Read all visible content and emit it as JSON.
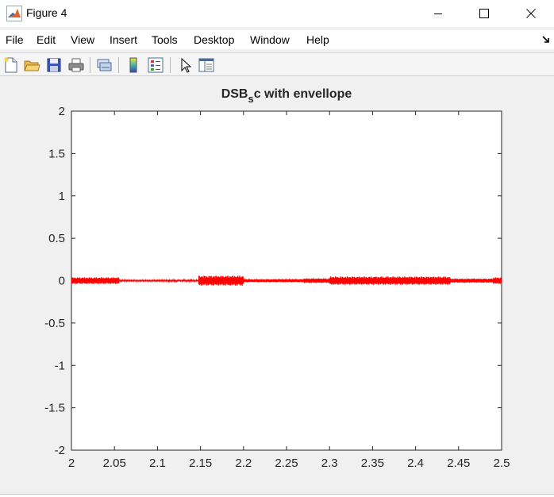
{
  "window": {
    "title": "Figure 4",
    "app_icon": "matlab-icon",
    "controls": [
      "minimize-icon",
      "maximize-icon",
      "close-icon"
    ]
  },
  "menubar": {
    "items": [
      "File",
      "Edit",
      "View",
      "Insert",
      "Tools",
      "Desktop",
      "Window",
      "Help"
    ]
  },
  "toolbar": {
    "icons": [
      "new-figure-icon",
      "open-file-icon",
      "save-icon",
      "print-icon",
      "link-plot-icon",
      "colorbar-icon",
      "legend-icon",
      "pointer-icon",
      "property-editor-icon"
    ]
  },
  "chart_data": {
    "type": "line",
    "title": "DSB",
    "title_subscript": "s",
    "title_rest": "c with envellope",
    "xlabel": "",
    "ylabel": "",
    "xlim": [
      2,
      2.5
    ],
    "ylim": [
      -2,
      2
    ],
    "xticks": [
      "2",
      "2.05",
      "2.1",
      "2.15",
      "2.2",
      "2.25",
      "2.3",
      "2.35",
      "2.4",
      "2.45",
      "2.5"
    ],
    "yticks": [
      "2",
      "1.5",
      "1",
      "0.5",
      "0",
      "-0.5",
      "-1",
      "-1.5",
      "-2"
    ],
    "grid": false,
    "line_color": "#ff0000",
    "segments": [
      {
        "x_start": 2.0,
        "x_end": 2.055,
        "amplitude": 0.04
      },
      {
        "x_start": 2.055,
        "x_end": 2.148,
        "amplitude": 0.008
      },
      {
        "x_start": 2.148,
        "x_end": 2.2,
        "amplitude": 0.06
      },
      {
        "x_start": 2.2,
        "x_end": 2.27,
        "amplitude": 0.018
      },
      {
        "x_start": 2.27,
        "x_end": 2.3,
        "amplitude": 0.028
      },
      {
        "x_start": 2.3,
        "x_end": 2.44,
        "amplitude": 0.05
      },
      {
        "x_start": 2.44,
        "x_end": 2.49,
        "amplitude": 0.025
      },
      {
        "x_start": 2.49,
        "x_end": 2.5,
        "amplitude": 0.04
      }
    ]
  }
}
